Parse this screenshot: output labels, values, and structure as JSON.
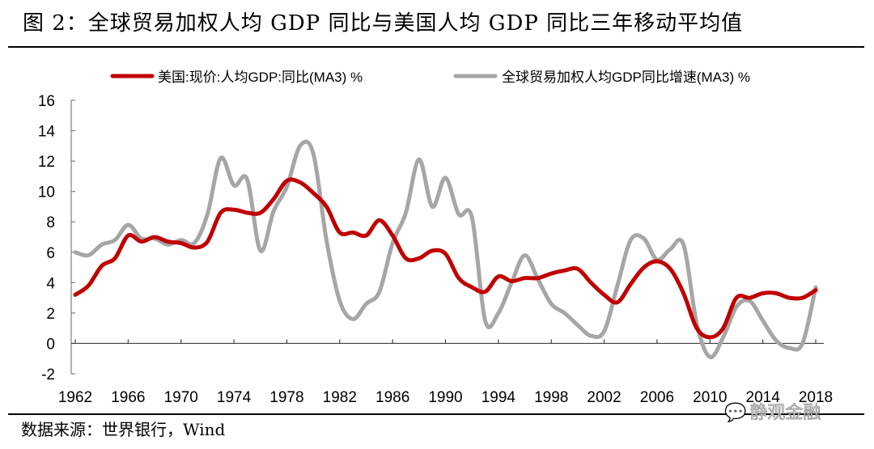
{
  "title": "图 2：全球贸易加权人均 GDP 同比与美国人均 GDP 同比三年移动平均值",
  "source": "数据来源：世界银行，Wind",
  "watermark": "静观金融",
  "watermark_icon": "wechat-icon",
  "chart_data": {
    "type": "line",
    "title": "图 2：全球贸易加权人均 GDP 同比与美国人均 GDP 同比三年移动平均值",
    "xlabel": "",
    "ylabel": "",
    "ylim": [
      -2,
      16
    ],
    "xlim": [
      1962,
      2018
    ],
    "yticks": [
      "16",
      "14",
      "12",
      "10",
      "8",
      "6",
      "4",
      "2",
      "0",
      "-2"
    ],
    "ytick_values": [
      16,
      14,
      12,
      10,
      8,
      6,
      4,
      2,
      0,
      -2
    ],
    "xticks": [
      "1962",
      "1966",
      "1970",
      "1974",
      "1978",
      "1982",
      "1986",
      "1990",
      "1994",
      "1998",
      "2002",
      "2006",
      "2010",
      "2014",
      "2018"
    ],
    "xtick_values": [
      1962,
      1966,
      1970,
      1974,
      1978,
      1982,
      1986,
      1990,
      1994,
      1998,
      2002,
      2006,
      2010,
      2014,
      2018
    ],
    "grid": false,
    "legend_position": "top",
    "x": [
      1962,
      1963,
      1964,
      1965,
      1966,
      1967,
      1968,
      1969,
      1970,
      1971,
      1972,
      1973,
      1974,
      1975,
      1976,
      1977,
      1978,
      1979,
      1980,
      1981,
      1982,
      1983,
      1984,
      1985,
      1986,
      1987,
      1988,
      1989,
      1990,
      1991,
      1992,
      1993,
      1994,
      1995,
      1996,
      1997,
      1998,
      1999,
      2000,
      2001,
      2002,
      2003,
      2004,
      2005,
      2006,
      2007,
      2008,
      2009,
      2010,
      2011,
      2012,
      2013,
      2014,
      2015,
      2016,
      2017,
      2018
    ],
    "series": [
      {
        "name": "美国:现价:人均GDP:同比(MA3) %",
        "color": "#c00000",
        "values": [
          3.2,
          3.8,
          5.1,
          5.6,
          7.1,
          6.7,
          7.0,
          6.7,
          6.6,
          6.3,
          6.7,
          8.6,
          8.8,
          8.6,
          8.6,
          9.5,
          10.7,
          10.6,
          9.9,
          9.0,
          7.3,
          7.3,
          7.1,
          8.1,
          7.1,
          5.6,
          5.6,
          6.1,
          5.9,
          4.3,
          3.7,
          3.4,
          4.4,
          4.1,
          4.3,
          4.3,
          4.6,
          4.8,
          4.9,
          4.0,
          3.2,
          2.7,
          3.9,
          5.0,
          5.4,
          4.9,
          3.3,
          1.0,
          0.4,
          1.0,
          3.0,
          3.0,
          3.3,
          3.3,
          3.0,
          3.0,
          3.5
        ]
      },
      {
        "name": "全球贸易加权人均GDP同比增速(MA3) %",
        "color": "#a6a6a6",
        "values": [
          6.0,
          5.8,
          6.5,
          6.8,
          7.8,
          6.9,
          6.9,
          6.5,
          6.8,
          6.6,
          8.5,
          12.2,
          10.4,
          10.8,
          6.1,
          8.7,
          10.3,
          13.0,
          12.5,
          6.8,
          2.8,
          1.6,
          2.6,
          3.4,
          6.6,
          8.6,
          12.1,
          9.0,
          10.9,
          8.5,
          8.3,
          1.5,
          2.0,
          4.0,
          5.8,
          4.2,
          2.6,
          2.0,
          1.2,
          0.5,
          0.8,
          3.8,
          6.8,
          6.9,
          5.5,
          6.2,
          6.5,
          1.3,
          -0.9,
          0.4,
          2.4,
          2.8,
          1.5,
          0.2,
          -0.3,
          0.0,
          3.7
        ]
      }
    ]
  }
}
